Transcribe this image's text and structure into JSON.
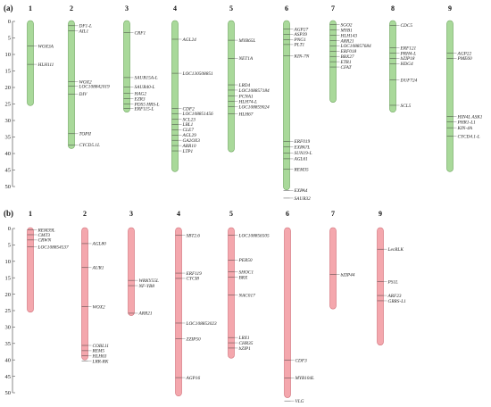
{
  "panels": [
    {
      "label": "(a)",
      "scale": {
        "min": 0,
        "max": 50,
        "step": 5
      },
      "bar_color": "#a9d99a",
      "bar_stroke": "#6aa35a",
      "chromosomes": [
        {
          "name": "1",
          "length": 25.5,
          "genes": [
            {
              "name": "WOX3A",
              "pos": 7.5
            },
            {
              "name": "HLH111",
              "pos": 13
            }
          ]
        },
        {
          "name": "2",
          "length": 38.5,
          "genes": [
            {
              "name": "DF1-L",
              "pos": 1.3
            },
            {
              "name": "AIL1",
              "pos": 2.9
            },
            {
              "name": "WOX2",
              "pos": 18.3
            },
            {
              "name": "LOC108842019",
              "pos": 19.6
            },
            {
              "name": "DIV",
              "pos": 22
            },
            {
              "name": "TOPII",
              "pos": 34
            },
            {
              "name": "CYCD5.1L",
              "pos": 37.4
            }
          ]
        },
        {
          "name": "3",
          "length": 27.5,
          "genes": [
            {
              "name": "CRF1",
              "pos": 3.4
            },
            {
              "name": "SAUR15A-L",
              "pos": 17
            },
            {
              "name": "SAUR40-L",
              "pos": 19.8
            },
            {
              "name": "HAG2",
              "pos": 21.8
            },
            {
              "name": "EZR3",
              "pos": 23.4
            },
            {
              "name": "PDS5 HRS-L",
              "pos": 25
            },
            {
              "name": "ERF115-L",
              "pos": 26.4
            }
          ]
        },
        {
          "name": "4",
          "length": 45.5,
          "genes": [
            {
              "name": "AGL24",
              "pos": 5.4
            },
            {
              "name": "LOC130508851",
              "pos": 15.7
            },
            {
              "name": "CDF2",
              "pos": 26.4
            },
            {
              "name": "LOC108851456",
              "pos": 27.9
            },
            {
              "name": "SCL23",
              "pos": 29.6
            },
            {
              "name": "LBL1",
              "pos": 31.2
            },
            {
              "name": "CLE7",
              "pos": 32.8
            },
            {
              "name": "AGL29",
              "pos": 34.4
            },
            {
              "name": "GA2OX3",
              "pos": 36
            },
            {
              "name": "ARR10",
              "pos": 37.6
            },
            {
              "name": "LTP1",
              "pos": 39.2
            }
          ]
        },
        {
          "name": "5",
          "length": 39.5,
          "genes": [
            {
              "name": "MYB65L",
              "pos": 5.7
            },
            {
              "name": "NET1A",
              "pos": 11.2
            },
            {
              "name": "LRD4",
              "pos": 19.2
            },
            {
              "name": "LOC108857184",
              "pos": 20.8
            },
            {
              "name": "PCNA1",
              "pos": 22.6
            },
            {
              "name": "HLH74-L",
              "pos": 24.2
            },
            {
              "name": "LOC108859024",
              "pos": 25.8
            },
            {
              "name": "HLH67",
              "pos": 28
            }
          ]
        },
        {
          "name": "6",
          "length": 51,
          "genes": [
            {
              "name": "AGP27",
              "pos": 2.3
            },
            {
              "name": "ASP39",
              "pos": 3.9
            },
            {
              "name": "PNG1",
              "pos": 5.5
            },
            {
              "name": "PLT1",
              "pos": 7
            },
            {
              "name": "KIN-7N",
              "pos": 10.4
            },
            {
              "name": "ERF019",
              "pos": 36.3
            },
            {
              "name": "EXPA7L",
              "pos": 38
            },
            {
              "name": "SUN19-L",
              "pos": 39.8
            },
            {
              "name": "AGL61",
              "pos": 41.6
            },
            {
              "name": "REM35",
              "pos": 44.8
            },
            {
              "name": "EXPA4",
              "pos": 51.2
            },
            {
              "name": "SAUR32",
              "pos": 53.5
            }
          ]
        },
        {
          "name": "7",
          "length": 24.5,
          "genes": [
            {
              "name": "SGO2",
              "pos": 1
            },
            {
              "name": "MYB1",
              "pos": 2.6
            },
            {
              "name": "HLH143",
              "pos": 4.2
            },
            {
              "name": "ARR21",
              "pos": 5.8
            },
            {
              "name": "LOC108857684",
              "pos": 7.4
            },
            {
              "name": "ERF018",
              "pos": 9
            },
            {
              "name": "BBX27",
              "pos": 10.6
            },
            {
              "name": "ETR1",
              "pos": 12.2
            },
            {
              "name": "CFAT",
              "pos": 13.8
            }
          ]
        },
        {
          "name": "8",
          "length": 27.5,
          "genes": [
            {
              "name": "CDC5",
              "pos": 1.2
            },
            {
              "name": "ERF121",
              "pos": 8
            },
            {
              "name": "PRH4-L",
              "pos": 9.6
            },
            {
              "name": "bZIP18",
              "pos": 11.2
            },
            {
              "name": "HDG4",
              "pos": 12.8
            },
            {
              "name": "DUF724",
              "pos": 17.7
            },
            {
              "name": "SCL5",
              "pos": 25.4
            }
          ]
        },
        {
          "name": "9",
          "length": 45.5,
          "genes": [
            {
              "name": "AGP22",
              "pos": 9.6
            },
            {
              "name": "PME60",
              "pos": 11.2
            },
            {
              "name": "HIN4L ASK1",
              "pos": 28.8
            },
            {
              "name": "PHR1-L1",
              "pos": 30.4
            },
            {
              "name": "KIN-4A",
              "pos": 32.2
            },
            {
              "name": "CYCD4.1-L",
              "pos": 34.8
            }
          ]
        }
      ]
    },
    {
      "label": "(b)",
      "scale": {
        "min": 0,
        "max": 50,
        "step": 5
      },
      "bar_color": "#f4a7ad",
      "bar_stroke": "#cf6d77",
      "chromosomes": [
        {
          "name": "1",
          "length": 25.5,
          "genes": [
            {
              "name": "REM39L",
              "pos": 0.4
            },
            {
              "name": "CMT3",
              "pos": 1.9
            },
            {
              "name": "CRWN",
              "pos": 3.5
            },
            {
              "name": "LOC108854537",
              "pos": 5.6
            }
          ]
        },
        {
          "name": "2",
          "length": 40,
          "genes": [
            {
              "name": "AGL80",
              "pos": 4.6
            },
            {
              "name": "AUR1",
              "pos": 11.9
            },
            {
              "name": "WOX2",
              "pos": 23.8
            },
            {
              "name": "COBL11",
              "pos": 35.6
            },
            {
              "name": "REM5",
              "pos": 37.2
            },
            {
              "name": "HLH63",
              "pos": 38.8
            },
            {
              "name": "LRR-RK",
              "pos": 40.4
            }
          ]
        },
        {
          "name": "3",
          "length": 26.5,
          "genes": [
            {
              "name": "WRKY55L",
              "pos": 15.8
            },
            {
              "name": "NF-YB8",
              "pos": 17.4
            },
            {
              "name": "ARR21",
              "pos": 25.8
            }
          ]
        },
        {
          "name": "4",
          "length": 51,
          "genes": [
            {
              "name": "SBT2.6",
              "pos": 2.1
            },
            {
              "name": "ERF119",
              "pos": 13.6
            },
            {
              "name": "CYCI8",
              "pos": 15.2
            },
            {
              "name": "LOC108853023",
              "pos": 28.8
            },
            {
              "name": "ZZIP50",
              "pos": 33.6
            },
            {
              "name": "AGP16",
              "pos": 45.4
            }
          ]
        },
        {
          "name": "5",
          "length": 39.5,
          "genes": [
            {
              "name": "LOC108856505",
              "pos": 2.1
            },
            {
              "name": "PER50",
              "pos": 9.6
            },
            {
              "name": "SHOC1",
              "pos": 13.2
            },
            {
              "name": "BRX",
              "pos": 14.8
            },
            {
              "name": "NAC017",
              "pos": 20.3
            },
            {
              "name": "LRX1",
              "pos": 33.2
            },
            {
              "name": "CHR35",
              "pos": 34.8
            },
            {
              "name": "bZIP1",
              "pos": 36.4
            }
          ]
        },
        {
          "name": "6",
          "length": 51.5,
          "genes": [
            {
              "name": "CDF3",
              "pos": 40.1
            },
            {
              "name": "MYB104L",
              "pos": 45.5
            },
            {
              "name": "VLG",
              "pos": 52.5
            }
          ]
        },
        {
          "name": "7",
          "length": 24.5,
          "genes": [
            {
              "name": "bZIP44",
              "pos": 14
            }
          ]
        },
        {
          "name": "9",
          "length": 35.5,
          "genes": [
            {
              "name": "LecRLK",
              "pos": 6.3
            },
            {
              "name": "PS1L",
              "pos": 16.2
            },
            {
              "name": "ARF23",
              "pos": 20.4
            },
            {
              "name": "GRRS-L1",
              "pos": 22
            }
          ]
        }
      ]
    }
  ]
}
